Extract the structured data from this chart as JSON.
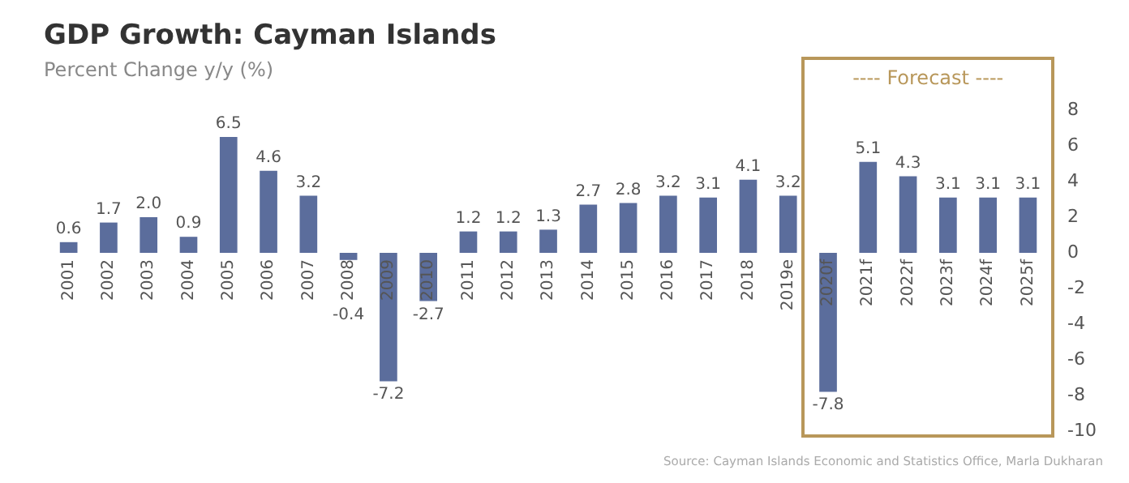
{
  "chart_data": {
    "type": "bar",
    "title": "GDP Growth: Cayman Islands",
    "subtitle": "Percent Change y/y (%)",
    "categories": [
      "2001",
      "2002",
      "2003",
      "2004",
      "2005",
      "2006",
      "2007",
      "2008",
      "2009",
      "2010",
      "2011",
      "2012",
      "2013",
      "2014",
      "2015",
      "2016",
      "2017",
      "2018",
      "2019e",
      "2020f",
      "2021f",
      "2022f",
      "2023f",
      "2024f",
      "2025f"
    ],
    "values": [
      0.6,
      1.7,
      2.0,
      0.9,
      6.5,
      4.6,
      3.2,
      -0.4,
      -7.2,
      -2.7,
      1.2,
      1.2,
      1.3,
      2.7,
      2.8,
      3.2,
      3.1,
      4.1,
      3.2,
      -7.8,
      5.1,
      4.3,
      3.1,
      3.1,
      3.1
    ],
    "color": "#5b6d9c",
    "ylim": [
      -10,
      8
    ],
    "yticks": [
      -10,
      -8,
      -6,
      -4,
      -2,
      0,
      2,
      4,
      6,
      8
    ],
    "grid": false,
    "legend": false,
    "value_labels": [
      "0.6",
      "1.7",
      "2.0",
      "0.9",
      "6.5",
      "4.6",
      "3.2",
      "-0.4",
      "-7.2",
      "-2.7",
      "1.2",
      "1.2",
      "1.3",
      "2.7",
      "2.8",
      "3.2",
      "3.1",
      "4.1",
      "3.2",
      "-7.8",
      "5.1",
      "4.3",
      "3.1",
      "3.1",
      "3.1"
    ],
    "annotations": [
      "---- Forecast ----",
      "Source: Cayman Islands Economic and Statistics Office, Marla Dukharan"
    ]
  }
}
